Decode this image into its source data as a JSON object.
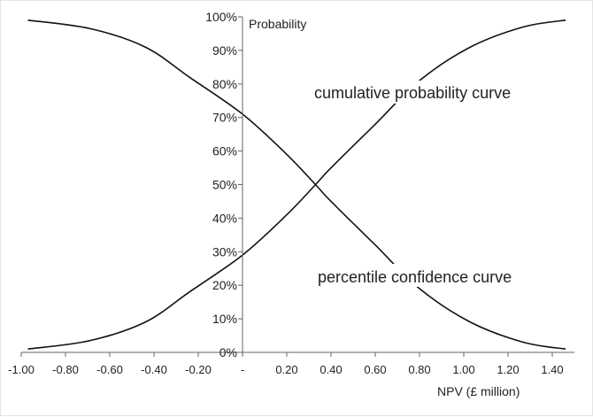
{
  "chart_data": {
    "type": "line",
    "title": "",
    "xlabel": "NPV (£ million)",
    "ylabel": "Probability",
    "xlim": [
      -1.0,
      1.5
    ],
    "ylim": [
      0,
      100
    ],
    "x_ticks": [
      "-1.00",
      "-0.80",
      "-0.60",
      "-0.40",
      "-0.20",
      "-",
      "0.20",
      "0.40",
      "0.60",
      "0.80",
      "1.00",
      "1.20",
      "1.40"
    ],
    "y_ticks": [
      "0%",
      "10%",
      "20%",
      "30%",
      "40%",
      "50%",
      "60%",
      "70%",
      "80%",
      "90%",
      "100%"
    ],
    "grid": false,
    "series": [
      {
        "name": "cumulative probability curve",
        "x": [
          -0.97,
          -0.69,
          -0.44,
          -0.24,
          0.0,
          0.2,
          0.33,
          0.4,
          0.6,
          0.8,
          1.03,
          1.27,
          1.46
        ],
        "y": [
          1,
          3.5,
          9,
          18,
          29,
          41,
          50,
          55,
          68,
          81,
          91,
          97,
          99
        ]
      },
      {
        "name": "percentile confidence curve",
        "x": [
          -0.97,
          -0.69,
          -0.44,
          -0.24,
          0.0,
          0.2,
          0.33,
          0.4,
          0.6,
          0.8,
          1.03,
          1.27,
          1.46
        ],
        "y": [
          99,
          96.5,
          91,
          82,
          71,
          59,
          50,
          45,
          32,
          19,
          9,
          3,
          1
        ]
      }
    ],
    "annotations": [
      "cumulative probability curve",
      "percentile confidence curve"
    ]
  }
}
